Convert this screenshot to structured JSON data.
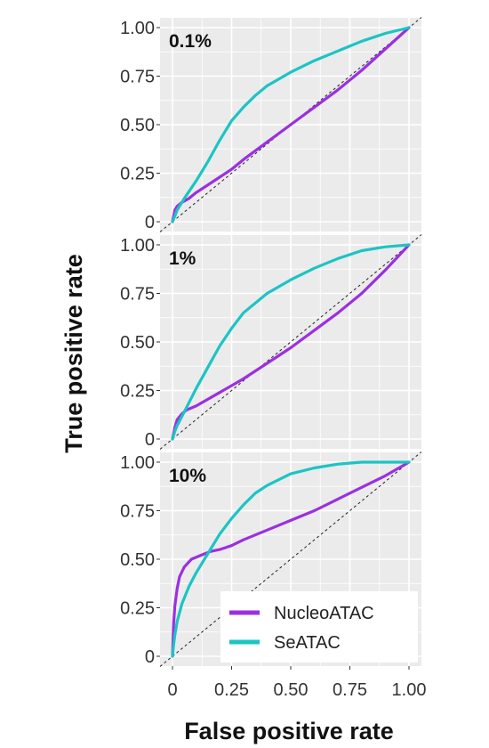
{
  "chart_data": {
    "type": "line",
    "xlabel": "False positive rate",
    "ylabel": "True positive rate",
    "xlim": [
      0,
      1
    ],
    "ylim": [
      0,
      1
    ],
    "x_ticks": [
      0,
      0.25,
      0.5,
      0.75,
      1.0
    ],
    "x_tick_labels": [
      "0",
      "0.25",
      "0.50",
      "0.75",
      "1.00"
    ],
    "y_ticks": [
      0,
      0.25,
      0.5,
      0.75,
      1.0
    ],
    "y_tick_labels": [
      "0",
      "0.25",
      "0.50",
      "0.75",
      "1.00"
    ],
    "grid": true,
    "legend_position": "bottom-right",
    "colors": {
      "NucleoATAC": "#9b30e0",
      "SeATAC": "#1cc4c4",
      "diagonal": "#222222",
      "panel_bg": "#ebebeb",
      "grid": "#ffffff"
    },
    "legend": [
      "NucleoATAC",
      "SeATAC"
    ],
    "panels": [
      {
        "label": "0.1%",
        "series": [
          {
            "name": "NucleoATAC",
            "x": [
              0,
              0.01,
              0.02,
              0.04,
              0.07,
              0.1,
              0.15,
              0.2,
              0.25,
              0.3,
              0.4,
              0.5,
              0.6,
              0.7,
              0.8,
              0.9,
              1.0
            ],
            "y": [
              0,
              0.06,
              0.08,
              0.1,
              0.12,
              0.15,
              0.19,
              0.23,
              0.27,
              0.32,
              0.41,
              0.5,
              0.59,
              0.68,
              0.78,
              0.89,
              1.0
            ]
          },
          {
            "name": "SeATAC",
            "x": [
              0,
              0.01,
              0.02,
              0.05,
              0.1,
              0.15,
              0.2,
              0.25,
              0.3,
              0.35,
              0.4,
              0.5,
              0.6,
              0.7,
              0.8,
              0.9,
              1.0
            ],
            "y": [
              0,
              0.03,
              0.06,
              0.12,
              0.21,
              0.31,
              0.42,
              0.52,
              0.59,
              0.65,
              0.7,
              0.77,
              0.83,
              0.88,
              0.93,
              0.97,
              1.0
            ]
          }
        ]
      },
      {
        "label": "1%",
        "series": [
          {
            "name": "NucleoATAC",
            "x": [
              0,
              0.01,
              0.02,
              0.04,
              0.06,
              0.1,
              0.2,
              0.3,
              0.4,
              0.5,
              0.6,
              0.7,
              0.8,
              0.9,
              1.0
            ],
            "y": [
              0,
              0.06,
              0.1,
              0.13,
              0.15,
              0.17,
              0.24,
              0.31,
              0.39,
              0.47,
              0.56,
              0.65,
              0.75,
              0.87,
              1.0
            ]
          },
          {
            "name": "SeATAC",
            "x": [
              0,
              0.01,
              0.02,
              0.05,
              0.1,
              0.15,
              0.2,
              0.25,
              0.3,
              0.4,
              0.5,
              0.6,
              0.7,
              0.8,
              0.9,
              1.0
            ],
            "y": [
              0,
              0.04,
              0.07,
              0.14,
              0.26,
              0.37,
              0.48,
              0.57,
              0.65,
              0.75,
              0.82,
              0.88,
              0.93,
              0.97,
              0.99,
              1.0
            ]
          }
        ]
      },
      {
        "label": "10%",
        "series": [
          {
            "name": "NucleoATAC",
            "x": [
              0,
              0.005,
              0.01,
              0.02,
              0.03,
              0.05,
              0.08,
              0.12,
              0.16,
              0.2,
              0.25,
              0.3,
              0.4,
              0.5,
              0.6,
              0.7,
              0.8,
              0.9,
              1.0
            ],
            "y": [
              0,
              0.17,
              0.26,
              0.35,
              0.41,
              0.46,
              0.5,
              0.52,
              0.54,
              0.55,
              0.57,
              0.6,
              0.65,
              0.7,
              0.75,
              0.81,
              0.87,
              0.93,
              1.0
            ]
          },
          {
            "name": "SeATAC",
            "x": [
              0,
              0.005,
              0.01,
              0.02,
              0.04,
              0.07,
              0.1,
              0.15,
              0.2,
              0.25,
              0.3,
              0.35,
              0.4,
              0.5,
              0.6,
              0.7,
              0.8,
              0.9,
              1.0
            ],
            "y": [
              0,
              0.06,
              0.11,
              0.18,
              0.27,
              0.36,
              0.43,
              0.53,
              0.63,
              0.71,
              0.78,
              0.84,
              0.88,
              0.94,
              0.97,
              0.99,
              1.0,
              1.0,
              1.0
            ]
          }
        ]
      }
    ]
  }
}
